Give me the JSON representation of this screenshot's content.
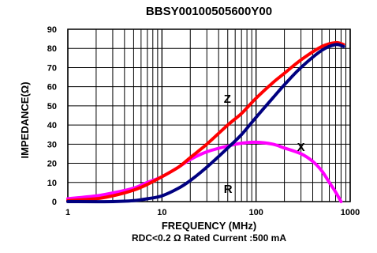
{
  "chart_data": {
    "type": "line",
    "title": "BBSY00100505600Y00",
    "xlabel": "FREQUENCY (MHz)",
    "ylabel": "IMPEDANCE(Ω)",
    "note": "RDC<0.2 Ω Rated Current :500 mA",
    "x_scale": "log",
    "xlim": [
      1,
      1000
    ],
    "ylim": [
      0,
      90
    ],
    "grid": true,
    "x_ticks": [
      {
        "value": 1,
        "label": "1"
      },
      {
        "value": 10,
        "label": "10"
      },
      {
        "value": 100,
        "label": "100"
      },
      {
        "value": 1000,
        "label": "1000"
      }
    ],
    "y_ticks": [
      {
        "value": 0,
        "label": "0"
      },
      {
        "value": 10,
        "label": "10"
      },
      {
        "value": 20,
        "label": "20"
      },
      {
        "value": 30,
        "label": "30"
      },
      {
        "value": 40,
        "label": "40"
      },
      {
        "value": 50,
        "label": "50"
      },
      {
        "value": 60,
        "label": "60"
      },
      {
        "value": 70,
        "label": "70"
      },
      {
        "value": 80,
        "label": "80"
      },
      {
        "value": 90,
        "label": "90"
      }
    ],
    "series": [
      {
        "name": "Z",
        "color": "#ff0000",
        "points": [
          [
            1,
            0.5
          ],
          [
            2,
            1.5
          ],
          [
            3,
            3
          ],
          [
            5,
            6
          ],
          [
            7,
            9
          ],
          [
            10,
            13
          ],
          [
            15,
            18
          ],
          [
            20,
            23
          ],
          [
            30,
            30
          ],
          [
            50,
            40
          ],
          [
            70,
            46
          ],
          [
            100,
            54
          ],
          [
            150,
            62
          ],
          [
            200,
            67
          ],
          [
            300,
            74
          ],
          [
            500,
            81
          ],
          [
            700,
            83
          ],
          [
            850,
            82
          ]
        ]
      },
      {
        "name": "R",
        "color": "#000080",
        "points": [
          [
            1,
            0
          ],
          [
            3,
            0
          ],
          [
            5,
            0.5
          ],
          [
            7,
            1.5
          ],
          [
            10,
            3
          ],
          [
            15,
            7
          ],
          [
            20,
            11
          ],
          [
            30,
            18
          ],
          [
            50,
            28
          ],
          [
            70,
            35
          ],
          [
            100,
            44
          ],
          [
            150,
            54
          ],
          [
            200,
            61
          ],
          [
            300,
            70
          ],
          [
            500,
            79
          ],
          [
            700,
            82
          ],
          [
            850,
            81
          ]
        ]
      },
      {
        "name": "X",
        "color": "#ff00ff",
        "points": [
          [
            1,
            1.5
          ],
          [
            2,
            3
          ],
          [
            3,
            4.5
          ],
          [
            5,
            7
          ],
          [
            7,
            10
          ],
          [
            10,
            13
          ],
          [
            15,
            18
          ],
          [
            20,
            22
          ],
          [
            30,
            26
          ],
          [
            50,
            29
          ],
          [
            70,
            30.5
          ],
          [
            100,
            31
          ],
          [
            150,
            30
          ],
          [
            200,
            28
          ],
          [
            300,
            25
          ],
          [
            400,
            21
          ],
          [
            500,
            16
          ],
          [
            600,
            10
          ],
          [
            700,
            5
          ],
          [
            800,
            0
          ]
        ]
      }
    ],
    "curve_labels": [
      {
        "text": "Z",
        "x": 50,
        "y": 54
      },
      {
        "text": "R",
        "x": 50,
        "y": 7
      },
      {
        "text": "X",
        "x": 300,
        "y": 29
      }
    ]
  }
}
